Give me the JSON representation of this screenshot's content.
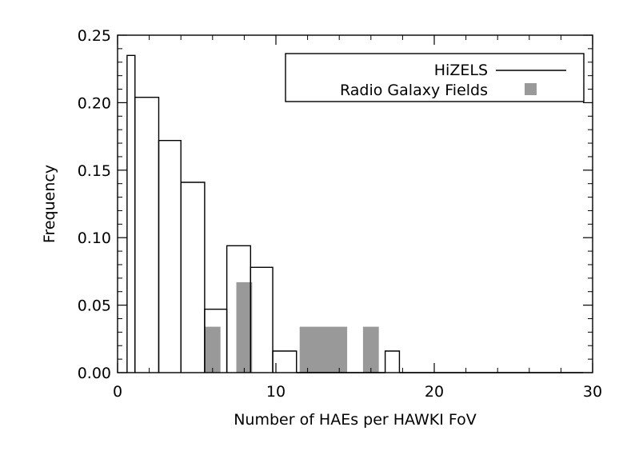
{
  "chart_data": {
    "type": "bar",
    "xlabel": "Number of HAEs per HAWKI FoV",
    "ylabel": "Frequency",
    "xlim": [
      0,
      30
    ],
    "ylim": [
      0,
      0.25
    ],
    "x_ticks": [
      0,
      10,
      20,
      30
    ],
    "y_ticks": [
      0.0,
      0.05,
      0.1,
      0.15,
      0.2,
      0.25
    ],
    "y_tick_labels": [
      "0.00",
      "0.05",
      "0.10",
      "0.15",
      "0.20",
      "0.25"
    ],
    "x_tick_labels": [
      "0",
      "10",
      "20",
      "30"
    ],
    "grid": false,
    "legend_position": "top-right",
    "series": [
      {
        "name": "HiZELS",
        "style": "step-outline",
        "color": "#000000",
        "bins": [
          {
            "x0": 0.6,
            "x1": 1.1,
            "value": 0.235
          },
          {
            "x0": 1.1,
            "x1": 2.6,
            "value": 0.204
          },
          {
            "x0": 2.6,
            "x1": 4.0,
            "value": 0.172
          },
          {
            "x0": 4.0,
            "x1": 5.5,
            "value": 0.141
          },
          {
            "x0": 5.5,
            "x1": 6.9,
            "value": 0.047
          },
          {
            "x0": 6.9,
            "x1": 8.4,
            "value": 0.094
          },
          {
            "x0": 8.4,
            "x1": 9.8,
            "value": 0.078
          },
          {
            "x0": 9.8,
            "x1": 11.3,
            "value": 0.016
          },
          {
            "x0": 11.3,
            "x1": 16.9,
            "value": 0.0
          },
          {
            "x0": 16.9,
            "x1": 17.8,
            "value": 0.016
          },
          {
            "x0": 17.8,
            "x1": 29.4,
            "value": 0.0
          }
        ]
      },
      {
        "name": "Radio Galaxy Fields",
        "style": "filled-bars",
        "color": "#999999",
        "bins": [
          {
            "x0": 5.5,
            "x1": 6.5,
            "value": 0.034
          },
          {
            "x0": 7.5,
            "x1": 8.5,
            "value": 0.067
          },
          {
            "x0": 11.5,
            "x1": 14.5,
            "value": 0.034
          },
          {
            "x0": 15.5,
            "x1": 16.5,
            "value": 0.034
          }
        ]
      }
    ]
  }
}
